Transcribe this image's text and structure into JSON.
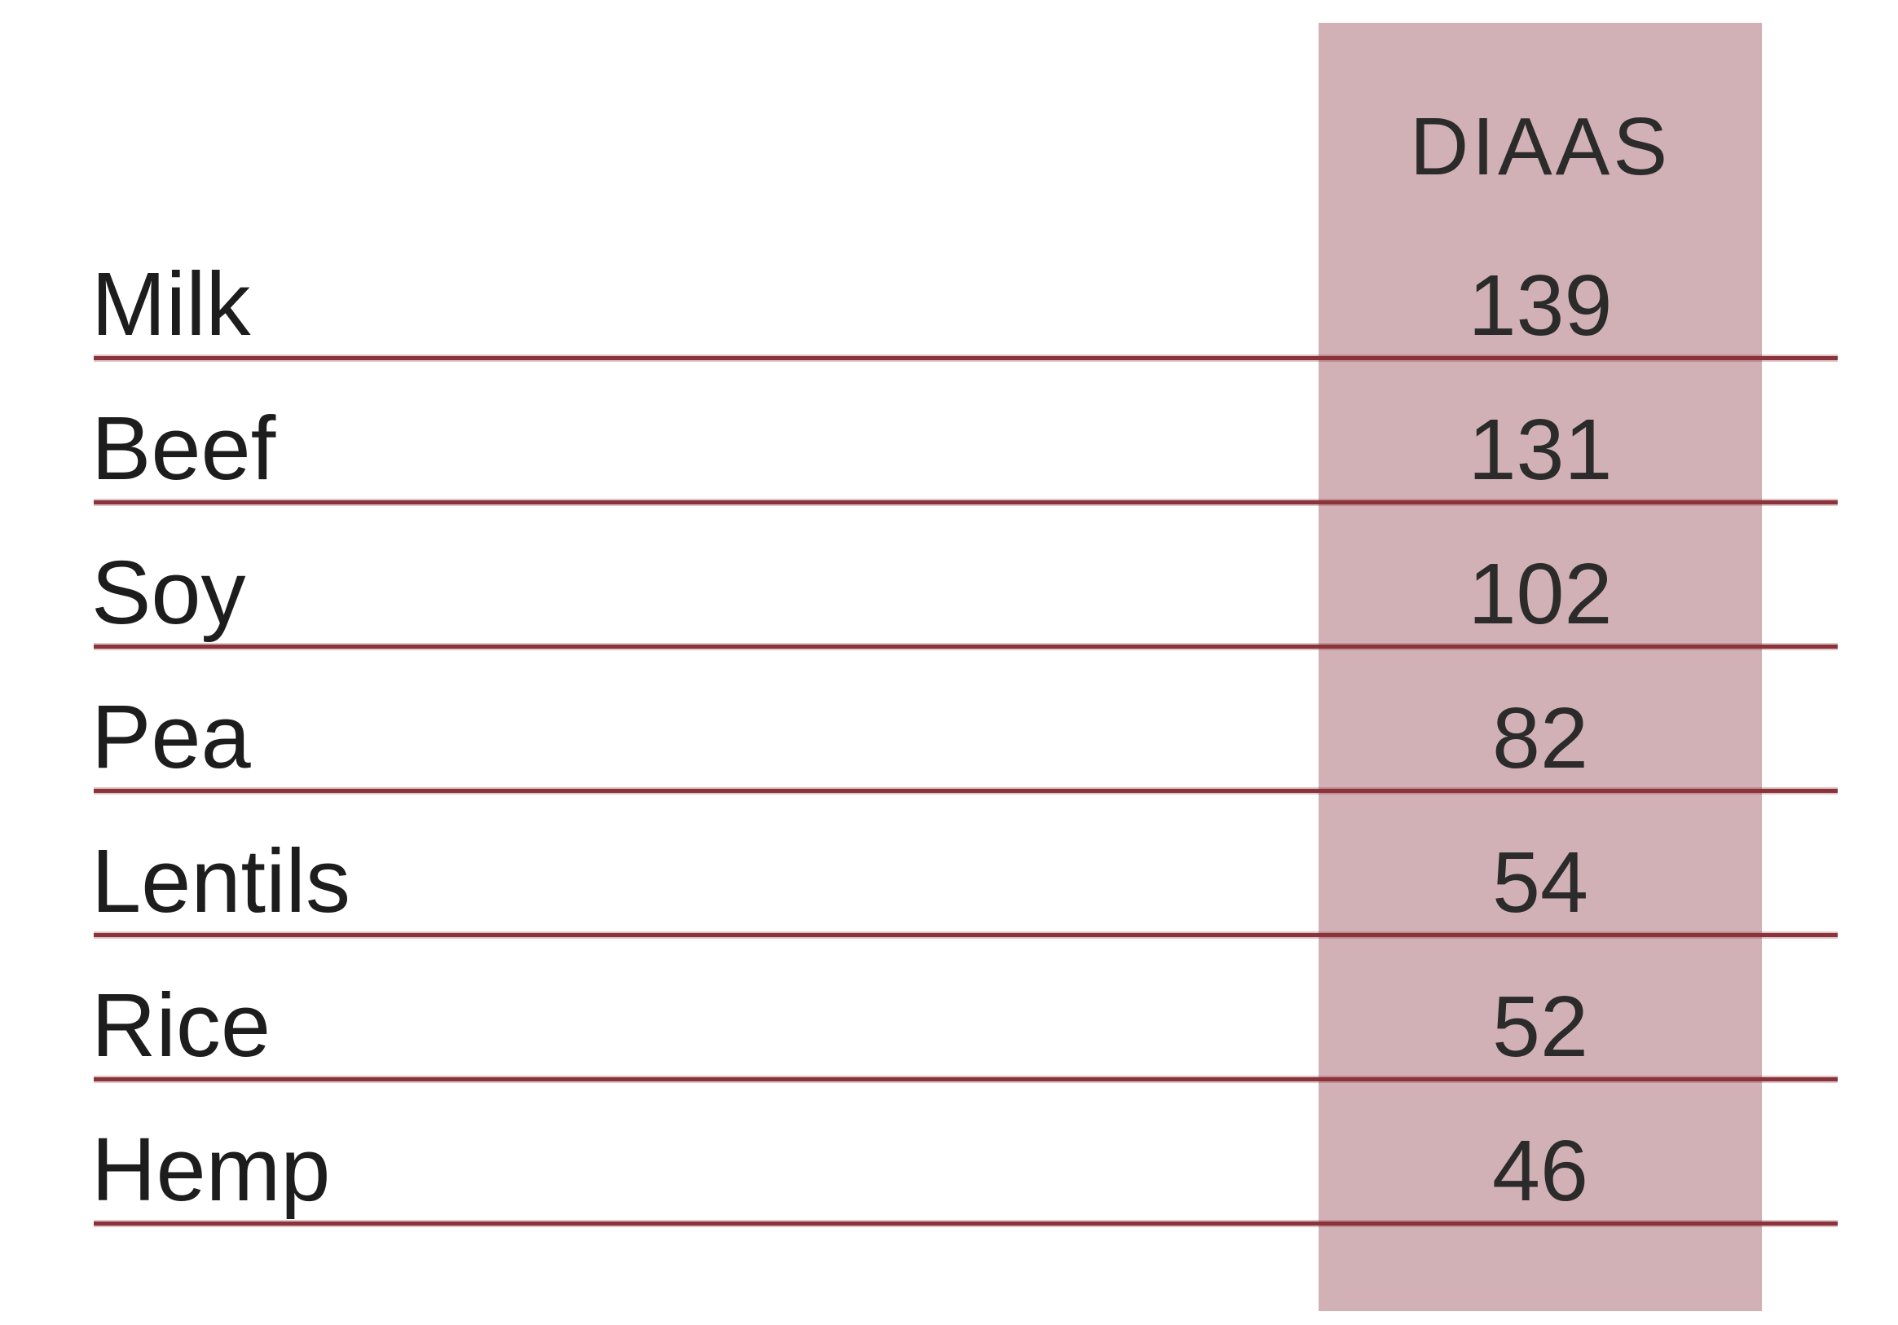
{
  "table": {
    "header": "DIAAS",
    "rows": [
      {
        "label": "Milk",
        "value": "139"
      },
      {
        "label": "Beef",
        "value": "131"
      },
      {
        "label": "Soy",
        "value": "102"
      },
      {
        "label": "Pea",
        "value": "82"
      },
      {
        "label": "Lentils",
        "value": "54"
      },
      {
        "label": "Rice",
        "value": "52"
      },
      {
        "label": "Hemp",
        "value": "46"
      }
    ]
  },
  "colors": {
    "background": "#ffffff",
    "column_highlight": "#d2b1b6",
    "divider_dark": "#8b333b",
    "divider_edge": "rgba(142,47,56,0.28)",
    "label_text": "#1d1d1d",
    "value_text": "#2b2b2b"
  },
  "chart_data": {
    "type": "table",
    "columns": [
      "",
      "DIAAS"
    ],
    "categories": [
      "Milk",
      "Beef",
      "Soy",
      "Pea",
      "Lentils",
      "Rice",
      "Hemp"
    ],
    "values": [
      139,
      131,
      102,
      82,
      54,
      52,
      46
    ],
    "title": "",
    "column_header": "DIAAS",
    "layout_hints": {
      "highlighted_column": "DIAAS",
      "row_dividers": true,
      "values_descending": true
    }
  }
}
